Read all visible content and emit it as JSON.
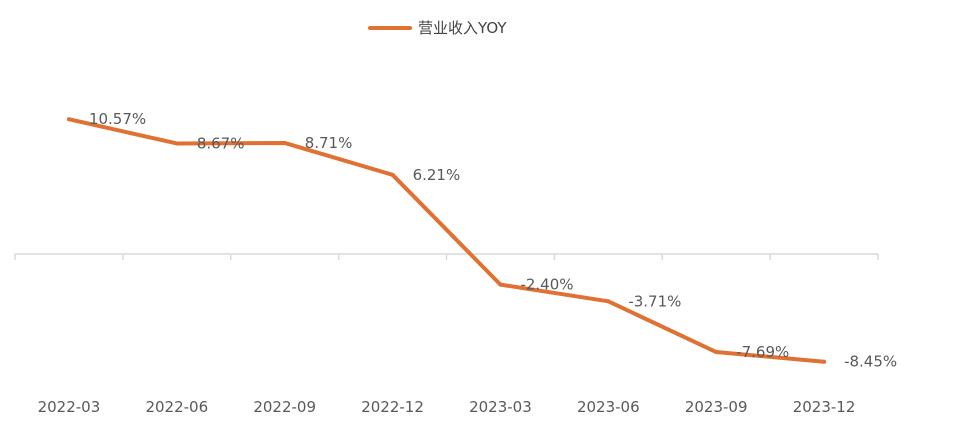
{
  "chart_data": {
    "type": "line",
    "title": "",
    "xlabel": "",
    "ylabel": "",
    "categories": [
      "2022-03",
      "2022-06",
      "2022-09",
      "2022-12",
      "2023-03",
      "2023-06",
      "2023-09",
      "2023-12"
    ],
    "series": [
      {
        "name": "营业收入YOY",
        "color": "#E07133",
        "values": [
          10.57,
          8.67,
          8.71,
          6.21,
          -2.4,
          -3.71,
          -7.69,
          -8.45
        ],
        "labels": [
          "10.57%",
          "8.67%",
          "8.71%",
          "6.21%",
          "-2.40%",
          "-3.71%",
          "-7.69%",
          "-8.45%"
        ]
      }
    ],
    "ylim": [
      -10,
      12
    ],
    "grid": false,
    "legend_position": "top-center"
  },
  "colors": {
    "axis": "#D9D9D9",
    "text": "#595959"
  }
}
